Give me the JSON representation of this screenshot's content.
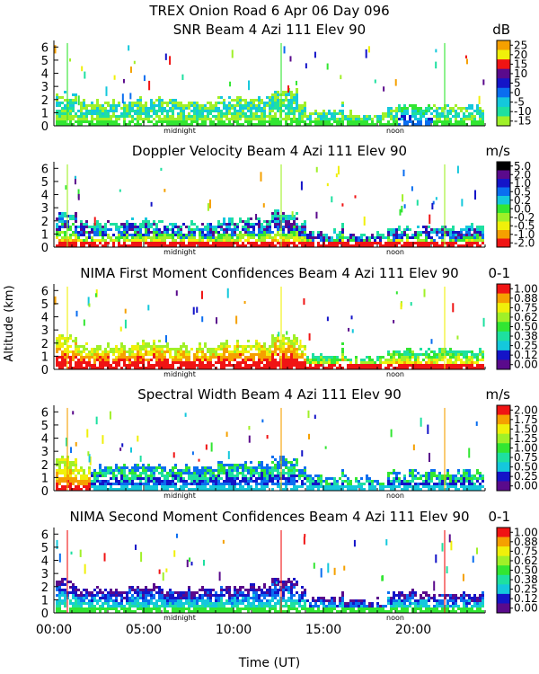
{
  "figure": {
    "title": "TREX Onion Road    6 Apr 06 Day 096",
    "ylabel": "Altitude (km)",
    "xlabel": "Time (UT)",
    "x_ticks": [
      "00:00",
      "05:00",
      "10:00",
      "15:00",
      "20:00"
    ],
    "y_ticks": [
      "0",
      "1",
      "2",
      "3",
      "4",
      "5",
      "6"
    ],
    "midnight_label": "midnight",
    "noon_label": "noon",
    "colors": {
      "scale": [
        "#5a0a8c",
        "#1414c8",
        "#0a6ef0",
        "#14c8dc",
        "#1ee0a0",
        "#32e632",
        "#a0f028",
        "#f0f00a",
        "#f5a000",
        "#f01414"
      ]
    }
  },
  "chart_data": [
    {
      "type": "heatmap",
      "title": "SNR Beam 4 Azi 111 Elev 90",
      "unit": "dB",
      "xlim": [
        0,
        24
      ],
      "ylim": [
        0,
        6.5
      ],
      "xlabel": "Time (UT)",
      "ylabel": "Altitude (km)",
      "colorbar_ticks": [
        "25",
        "20",
        "15",
        "10",
        "5",
        "0",
        "-5",
        "-10",
        "-15"
      ],
      "colorbar_colors": [
        "#f5a000",
        "#f0f00a",
        "#f01414",
        "#5a0a8c",
        "#1414c8",
        "#0a6ef0",
        "#14c8dc",
        "#1ee0a0",
        "#a0f028"
      ]
    },
    {
      "type": "heatmap",
      "title": "Doppler Velocity Beam 4 Azi 111 Elev 90",
      "unit": "m/s",
      "xlim": [
        0,
        24
      ],
      "ylim": [
        0,
        6.5
      ],
      "colorbar_ticks": [
        "5.0",
        "2.0",
        "1.0",
        "0.5",
        "0.2",
        "0.0",
        "-0.2",
        "-0.5",
        "-1.0",
        "-2.0"
      ],
      "colorbar_colors": [
        "#000000",
        "#5a0a8c",
        "#1414c8",
        "#0a6ef0",
        "#14c8dc",
        "#32e632",
        "#a0f028",
        "#f0f00a",
        "#f5a000",
        "#f01414"
      ]
    },
    {
      "type": "heatmap",
      "title": "NIMA First Moment Confidences Beam 4 Azi 111 Elev 90",
      "unit": "0-1",
      "xlim": [
        0,
        24
      ],
      "ylim": [
        0,
        6.5
      ],
      "colorbar_ticks": [
        "1.00",
        "0.88",
        "0.75",
        "0.62",
        "0.50",
        "0.38",
        "0.25",
        "0.12",
        "0.00"
      ],
      "colorbar_colors": [
        "#f01414",
        "#f5a000",
        "#f0f00a",
        "#a0f028",
        "#32e632",
        "#1ee0a0",
        "#14c8dc",
        "#1414c8",
        "#5a0a8c"
      ]
    },
    {
      "type": "heatmap",
      "title": "Spectral Width Beam 4 Azi 111 Elev 90",
      "unit": "m/s",
      "xlim": [
        0,
        24
      ],
      "ylim": [
        0,
        6.5
      ],
      "colorbar_ticks": [
        "2.00",
        "1.75",
        "1.50",
        "1.25",
        "1.00",
        "0.75",
        "0.50",
        "0.25",
        "0.00"
      ],
      "colorbar_colors": [
        "#f01414",
        "#f5a000",
        "#f0f00a",
        "#a0f028",
        "#32e632",
        "#1ee0a0",
        "#14c8dc",
        "#1414c8",
        "#5a0a8c"
      ]
    },
    {
      "type": "heatmap",
      "title": "NIMA Second Moment Confidences Beam 4 Azi 111 Elev 90",
      "unit": "0-1",
      "xlim": [
        0,
        24
      ],
      "ylim": [
        0,
        6.5
      ],
      "colorbar_ticks": [
        "1.00",
        "0.88",
        "0.75",
        "0.62",
        "0.50",
        "0.38",
        "0.25",
        "0.12",
        "0.00"
      ],
      "colorbar_colors": [
        "#f01414",
        "#f5a000",
        "#f0f00a",
        "#a0f028",
        "#32e632",
        "#1ee0a0",
        "#14c8dc",
        "#1414c8",
        "#5a0a8c"
      ]
    }
  ]
}
